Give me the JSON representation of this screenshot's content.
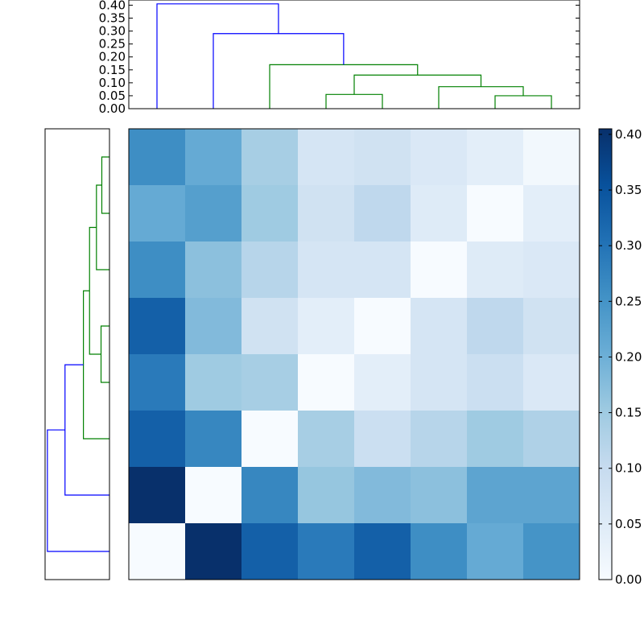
{
  "chart_data": [
    {
      "type": "dendrogram",
      "orientation": "top",
      "ylim": [
        0,
        0.42
      ],
      "yticks": [
        "0.00",
        "0.05",
        "0.10",
        "0.15",
        "0.20",
        "0.25",
        "0.30",
        "0.35",
        "0.40"
      ],
      "leaf_count": 8,
      "links": [
        {
          "left": 7,
          "right": 8,
          "height": 0.05,
          "color": "#008000"
        },
        {
          "left": 4,
          "right": 5,
          "height": 0.055,
          "color": "#008000"
        },
        {
          "left": 6,
          "right": 7.5,
          "height": 0.085,
          "color": "#008000"
        },
        {
          "left": 4.5,
          "right": 6.75,
          "height": 0.13,
          "color": "#008000"
        },
        {
          "left": 3,
          "right": 5.625,
          "height": 0.17,
          "color": "#008000"
        },
        {
          "left": 2,
          "right": 4.3125,
          "height": 0.29,
          "color": "#0000ff"
        },
        {
          "left": 1,
          "right": 3.15625,
          "height": 0.405,
          "color": "#0000ff"
        }
      ]
    },
    {
      "type": "dendrogram",
      "orientation": "left",
      "xlim": [
        0,
        0.42
      ],
      "leaf_count": 8,
      "links": [
        {
          "left": 7,
          "right": 8,
          "height": 0.05,
          "color": "#008000"
        },
        {
          "left": 4,
          "right": 5,
          "height": 0.055,
          "color": "#008000"
        },
        {
          "left": 6,
          "right": 7.5,
          "height": 0.085,
          "color": "#008000"
        },
        {
          "left": 4.5,
          "right": 6.75,
          "height": 0.13,
          "color": "#008000"
        },
        {
          "left": 3,
          "right": 5.625,
          "height": 0.17,
          "color": "#008000"
        },
        {
          "left": 2,
          "right": 4.3125,
          "height": 0.29,
          "color": "#0000ff"
        },
        {
          "left": 1,
          "right": 3.15625,
          "height": 0.405,
          "color": "#0000ff"
        }
      ]
    },
    {
      "type": "heatmap",
      "colormap": "Blues",
      "vmin": 0,
      "vmax": 0.405,
      "colorbar_ticks": [
        "0.00",
        "0.05",
        "0.10",
        "0.15",
        "0.20",
        "0.25",
        "0.30",
        "0.35",
        "0.40"
      ],
      "rows": [
        [
          0.26,
          0.21,
          0.14,
          0.07,
          0.08,
          0.06,
          0.04,
          0.01
        ],
        [
          0.21,
          0.23,
          0.15,
          0.08,
          0.11,
          0.05,
          0.0,
          0.04
        ],
        [
          0.26,
          0.17,
          0.12,
          0.07,
          0.07,
          0.0,
          0.05,
          0.06
        ],
        [
          0.33,
          0.18,
          0.08,
          0.04,
          0.0,
          0.07,
          0.11,
          0.08
        ],
        [
          0.29,
          0.15,
          0.14,
          0.0,
          0.04,
          0.07,
          0.09,
          0.06
        ],
        [
          0.33,
          0.27,
          0.0,
          0.14,
          0.09,
          0.12,
          0.15,
          0.13
        ],
        [
          0.405,
          0.0,
          0.27,
          0.16,
          0.18,
          0.17,
          0.22,
          0.22
        ],
        [
          0.0,
          0.405,
          0.33,
          0.29,
          0.33,
          0.26,
          0.21,
          0.25
        ]
      ]
    }
  ]
}
